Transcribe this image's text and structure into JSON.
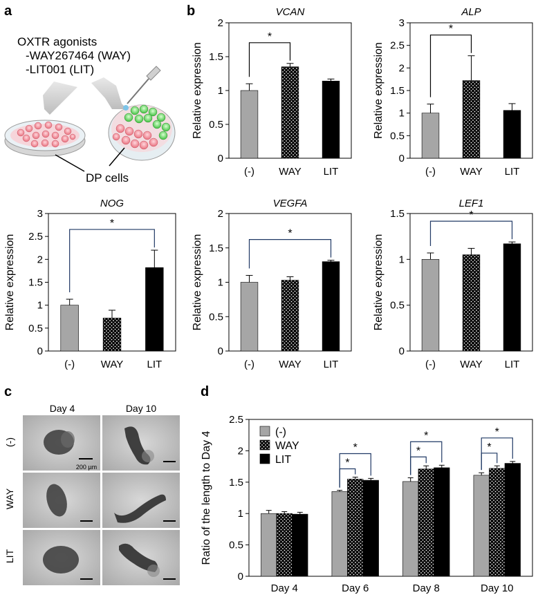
{
  "panel_labels": {
    "a": "a",
    "b": "b",
    "c": "c",
    "d": "d"
  },
  "panel_a": {
    "title": "OXTR agonists",
    "items": [
      "-WAY267464 (WAY)",
      "-LIT001 (LIT)"
    ],
    "cell_label": "DP cells"
  },
  "panel_c": {
    "columns": [
      "Day 4",
      "Day 10"
    ],
    "rows": [
      "(-)",
      "WAY",
      "LIT"
    ],
    "scale_label": "200 µm"
  },
  "colors": {
    "control": "#a6a6a6",
    "way_base": "#000000",
    "lit": "#000000",
    "bracket": "#1f3864"
  },
  "chart_data": [
    {
      "id": "vcan",
      "type": "bar",
      "title": "VCAN",
      "ylabel": "Relative expression",
      "categories": [
        "(-)",
        "WAY",
        "LIT"
      ],
      "values": [
        1.0,
        1.35,
        1.14
      ],
      "errors": [
        0.1,
        0.05,
        0.03
      ],
      "ylim": [
        0,
        2
      ],
      "yticks": [
        "0",
        "0.5",
        "1",
        "1.5",
        "2"
      ],
      "significance": [
        {
          "from": "(-)",
          "to": "WAY",
          "label": "*"
        }
      ]
    },
    {
      "id": "alp",
      "type": "bar",
      "title": "ALP",
      "ylabel": "Relative expression",
      "categories": [
        "(-)",
        "WAY",
        "LIT"
      ],
      "values": [
        1.0,
        1.72,
        1.06
      ],
      "errors": [
        0.2,
        0.55,
        0.15
      ],
      "ylim": [
        0,
        3
      ],
      "yticks": [
        "0",
        "0.5",
        "1",
        "1.5",
        "2",
        "2.5",
        "3"
      ],
      "significance": [
        {
          "from": "(-)",
          "to": "WAY",
          "label": "*"
        }
      ]
    },
    {
      "id": "nog",
      "type": "bar",
      "title": "NOG",
      "ylabel": "Relative expression",
      "categories": [
        "(-)",
        "WAY",
        "LIT"
      ],
      "values": [
        1.0,
        0.72,
        1.82
      ],
      "errors": [
        0.13,
        0.17,
        0.38
      ],
      "ylim": [
        0,
        3
      ],
      "yticks": [
        "0",
        "0.5",
        "1",
        "1.5",
        "2",
        "2.5",
        "3"
      ],
      "significance": [
        {
          "from": "(-)",
          "to": "LIT",
          "label": "*"
        }
      ]
    },
    {
      "id": "vegfa",
      "type": "bar",
      "title": "VEGFA",
      "ylabel": "Relative expression",
      "categories": [
        "(-)",
        "WAY",
        "LIT"
      ],
      "values": [
        1.0,
        1.03,
        1.3
      ],
      "errors": [
        0.1,
        0.05,
        0.02
      ],
      "ylim": [
        0,
        2
      ],
      "yticks": [
        "0",
        "0.5",
        "1",
        "1.5",
        "2"
      ],
      "significance": [
        {
          "from": "(-)",
          "to": "LIT",
          "label": "*"
        }
      ]
    },
    {
      "id": "lef1",
      "type": "bar",
      "title": "LEF1",
      "ylabel": "Relative expression",
      "categories": [
        "(-)",
        "WAY",
        "LIT"
      ],
      "values": [
        1.0,
        1.05,
        1.17
      ],
      "errors": [
        0.07,
        0.07,
        0.02
      ],
      "ylim": [
        0,
        1.5
      ],
      "yticks": [
        "0",
        "0.5",
        "1",
        "1.5"
      ],
      "significance": [
        {
          "from": "(-)",
          "to": "LIT",
          "label": "*"
        }
      ]
    },
    {
      "id": "length",
      "type": "bar",
      "title": "",
      "ylabel": "Ratio of the length to Day 4",
      "categories": [
        "Day 4",
        "Day 6",
        "Day 8",
        "Day 10"
      ],
      "series": [
        {
          "name": "(-)",
          "values": [
            1.0,
            1.35,
            1.51,
            1.61
          ],
          "errors": [
            0.05,
            0.02,
            0.06,
            0.04
          ]
        },
        {
          "name": "WAY",
          "values": [
            1.0,
            1.55,
            1.71,
            1.72
          ],
          "errors": [
            0.03,
            0.03,
            0.05,
            0.04
          ]
        },
        {
          "name": "LIT",
          "values": [
            0.99,
            1.53,
            1.73,
            1.8
          ],
          "errors": [
            0.03,
            0.03,
            0.04,
            0.03
          ]
        }
      ],
      "ylim": [
        0,
        2.5
      ],
      "yticks": [
        "0",
        "0.5",
        "1",
        "1.5",
        "2",
        "2.5"
      ],
      "legend": "top-left",
      "significance": [
        {
          "category": "Day 6",
          "from": "(-)",
          "to": "WAY",
          "label": "*"
        },
        {
          "category": "Day 6",
          "from": "(-)",
          "to": "LIT",
          "label": "*"
        },
        {
          "category": "Day 8",
          "from": "(-)",
          "to": "WAY",
          "label": "*"
        },
        {
          "category": "Day 8",
          "from": "(-)",
          "to": "LIT",
          "label": "*"
        },
        {
          "category": "Day 10",
          "from": "(-)",
          "to": "WAY",
          "label": "*"
        },
        {
          "category": "Day 10",
          "from": "(-)",
          "to": "LIT",
          "label": "*"
        }
      ]
    }
  ]
}
